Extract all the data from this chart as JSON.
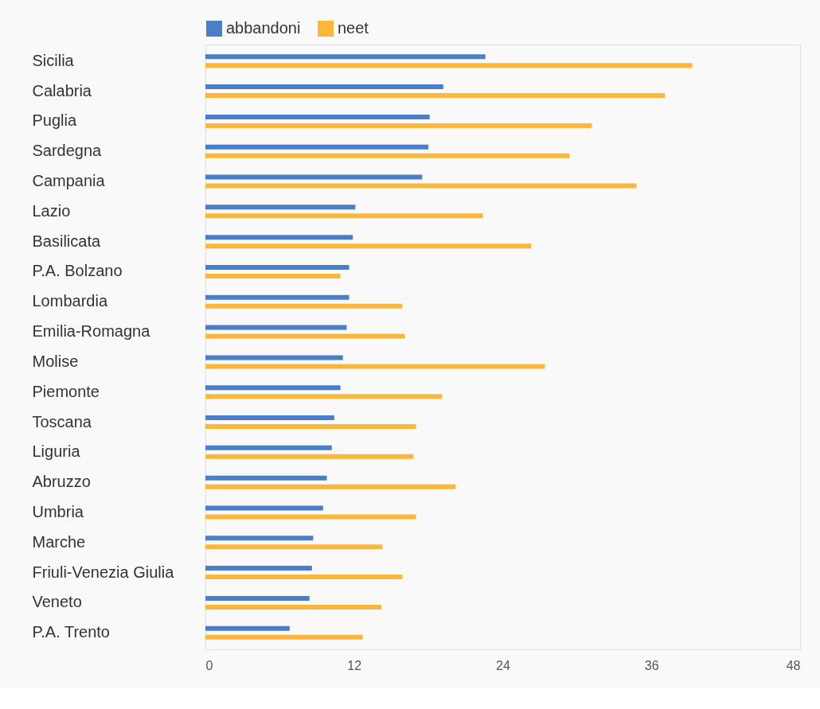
{
  "chart_data": {
    "type": "bar",
    "orientation": "horizontal",
    "categories": [
      "Sicilia",
      "Calabria",
      "Puglia",
      "Sardegna",
      "Campania",
      "Lazio",
      "Basilicata",
      "P.A. Bolzano",
      "Lombardia",
      "Emilia-Romagna",
      "Molise",
      "Piemonte",
      "Toscana",
      "Liguria",
      "Abruzzo",
      "Umbria",
      "Marche",
      "Friuli-Venezia Giulia",
      "Veneto",
      "P.A. Trento"
    ],
    "series": [
      {
        "name": "abbandoni",
        "color": "#4a7fc8",
        "values": [
          22.6,
          19.2,
          18.1,
          18.0,
          17.5,
          12.1,
          11.9,
          11.6,
          11.6,
          11.4,
          11.1,
          10.9,
          10.4,
          10.2,
          9.8,
          9.5,
          8.7,
          8.6,
          8.4,
          6.8
        ]
      },
      {
        "name": "neet",
        "color": "#fbb73a",
        "values": [
          39.3,
          37.1,
          31.2,
          29.4,
          34.8,
          22.4,
          26.3,
          10.9,
          15.9,
          16.1,
          27.4,
          19.1,
          17.0,
          16.8,
          20.2,
          17.0,
          14.3,
          15.9,
          14.2,
          12.7
        ]
      }
    ],
    "xlim": [
      0,
      48
    ],
    "xticks": [
      0,
      12,
      24,
      36,
      48
    ],
    "grid": false,
    "legend": "top left"
  }
}
